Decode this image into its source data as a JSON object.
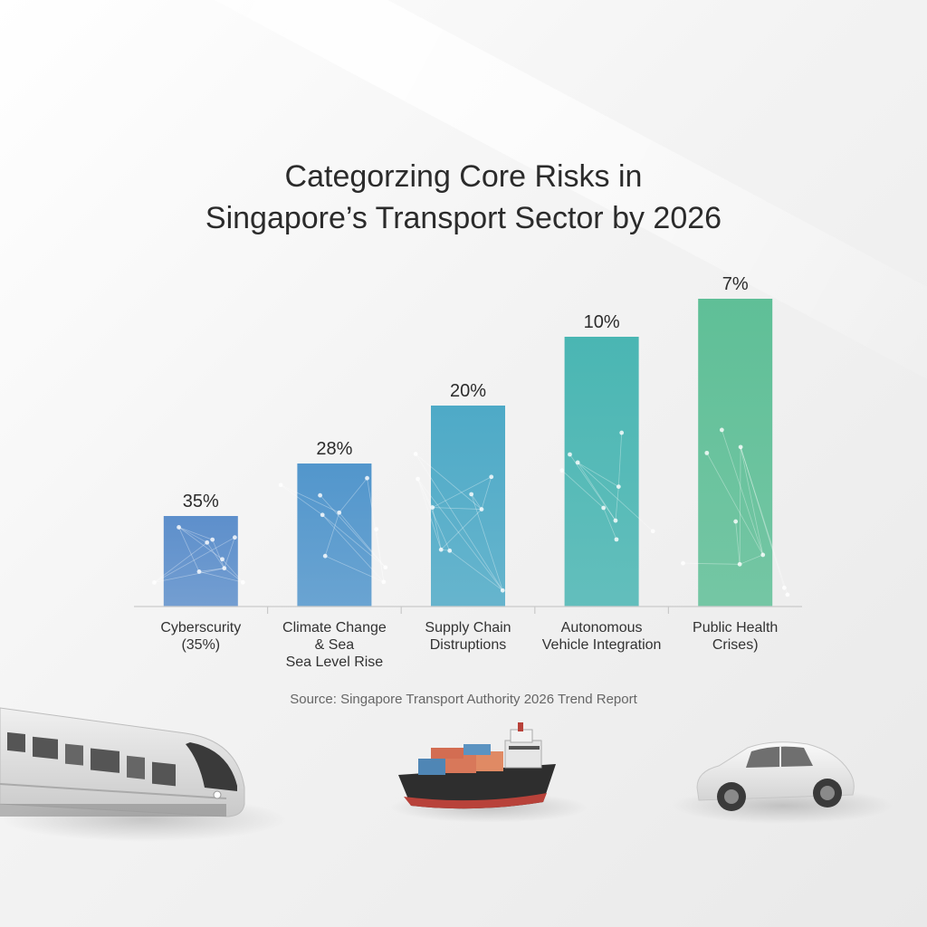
{
  "title_lines": [
    "Categorzing Core Risks in",
    "Singapore’s Transport Sector by 2026"
  ],
  "source": "Source: Singapore Transport Authority 2026 Trend Report",
  "chart_data": {
    "type": "bar",
    "title": "Categorzing Core Risks in Singapore’s Transport Sector by 2026",
    "xlabel": "",
    "ylabel": "",
    "categories": [
      [
        "Cyberscurity",
        "(35%)"
      ],
      [
        "Climate Change",
        "& Sea",
        "Sea Level Rise"
      ],
      [
        "Supply Chain",
        "Distruptions"
      ],
      [
        "Autonomous",
        "Vehicle Integration"
      ],
      [
        "Public Health",
        "Crises)"
      ]
    ],
    "values": [
      35,
      28,
      20,
      10,
      7
    ],
    "value_labels": [
      "35%",
      "28%",
      "20%",
      "10%",
      "7%"
    ],
    "bar_heights_relative": [
      25,
      39.5,
      55.5,
      74.5,
      85
    ],
    "colors": [
      "#5d8fcb",
      "#5296cc",
      "#4eaac7",
      "#4ab6b3",
      "#5fbf97"
    ],
    "grid": false,
    "legend": "none"
  },
  "illustration": {
    "items": [
      "train",
      "cargo-ship",
      "car"
    ]
  }
}
